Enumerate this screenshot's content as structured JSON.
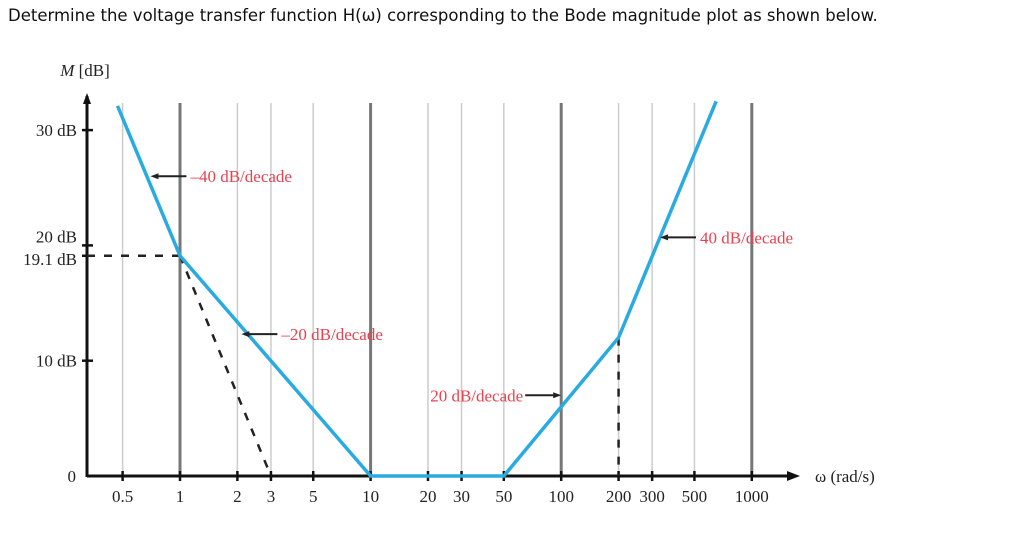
{
  "question": "Determine the voltage transfer function H(ω) corresponding to the Bode magnitude plot as shown below.",
  "chart_data": {
    "type": "line",
    "ylabel_italic": "M",
    "ylabel": "[dB]",
    "xlabel": "ω (rad/s)",
    "xscale": "log",
    "xlim": [
      0.45,
      1500
    ],
    "ylim": [
      0,
      33
    ],
    "grid": "vertical",
    "x_ticks": [
      {
        "v": 0.5,
        "label": "0.5"
      },
      {
        "v": 1,
        "label": "1"
      },
      {
        "v": 2,
        "label": "2"
      },
      {
        "v": 3,
        "label": "3"
      },
      {
        "v": 5,
        "label": "5"
      },
      {
        "v": 10,
        "label": "10"
      },
      {
        "v": 20,
        "label": "20"
      },
      {
        "v": 30,
        "label": "30"
      },
      {
        "v": 50,
        "label": "50"
      },
      {
        "v": 100,
        "label": "100"
      },
      {
        "v": 200,
        "label": "200"
      },
      {
        "v": 300,
        "label": "300"
      },
      {
        "v": 500,
        "label": "500"
      },
      {
        "v": 1000,
        "label": "1000"
      }
    ],
    "y_ticks": [
      {
        "v": 0,
        "label": "0"
      },
      {
        "v": 10,
        "label": "10 dB"
      },
      {
        "v": 19.1,
        "label": "19.1 dB"
      },
      {
        "v": 20,
        "label": "20 dB"
      },
      {
        "v": 30,
        "label": "30 dB"
      }
    ],
    "series": [
      {
        "x": [
          0.47,
          1,
          10,
          50,
          200,
          650
        ],
        "y": [
          32.1,
          19.1,
          0,
          0,
          12,
          32.5
        ],
        "color": "#29abe2"
      }
    ],
    "dashed_guides": [
      {
        "x": [
          0.45,
          1
        ],
        "y": [
          19.1,
          19.1
        ]
      },
      {
        "x": [
          1,
          3
        ],
        "y": [
          19.1,
          0
        ]
      },
      {
        "x": [
          200,
          200
        ],
        "y": [
          12,
          0
        ]
      }
    ],
    "annotations": [
      {
        "text": "–40 dB/decade",
        "at": [
          0.7,
          26
        ],
        "arrow": "left"
      },
      {
        "text": "–20 dB/decade",
        "at": [
          2.1,
          12.3
        ],
        "arrow": "left"
      },
      {
        "text": "20 dB/decade",
        "at": [
          100,
          7
        ],
        "arrow": "right"
      },
      {
        "text": "40 dB/decade",
        "at": [
          330,
          20.7
        ],
        "arrow": "left"
      }
    ],
    "annotation_color": "#e8424f"
  }
}
